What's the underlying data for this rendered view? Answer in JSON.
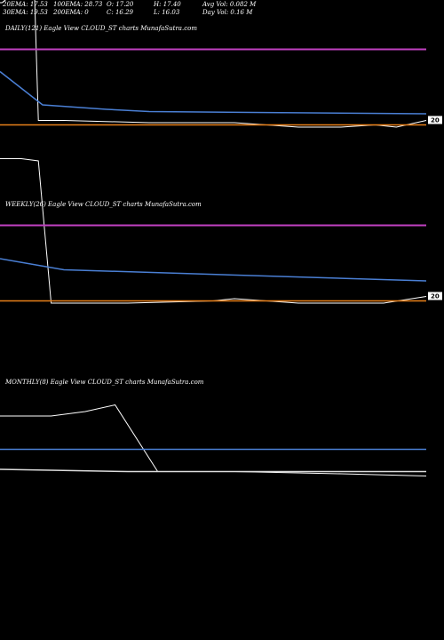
{
  "header": {
    "ema20": "20EMA: 17.53",
    "ema100": "100EMA: 28.73",
    "open": "O: 17.20",
    "high": "H: 17.40",
    "avg_vol": "Avg Vol: 0.082  M",
    "ema30": "30EMA: 19.53",
    "ema200": "200EMA: 0",
    "close": "C: 16.29",
    "low": "L: 16.03",
    "day_vol": "Day Vol: 0.16  M"
  },
  "panels": {
    "daily": {
      "title": "DAILY(121) Eagle   View  CLOUD_ST charts MunafaSutra.com",
      "price_tag": "20"
    },
    "weekly": {
      "title": "WEEKLY(26) Eagle   View  CLOUD_ST charts MunafaSutra.com",
      "price_tag": "20"
    },
    "monthly": {
      "title": "MONTHLY(8) Eagle   View  CLOUD_ST charts MunafaSutra.com"
    }
  },
  "colors": {
    "background": "#000000",
    "price": "#ffffff",
    "ema_magenta": "#c040c0",
    "ema_blue": "#4a7fd4",
    "ema_orange": "#e8801a",
    "ema_white": "#dddddd",
    "tag_bg": "#ffffff"
  },
  "chart_data": [
    {
      "type": "line",
      "title": "DAILY(121) Eagle   View  CLOUD_ST charts MunafaSutra.com",
      "series": [
        {
          "role": "price",
          "values": [
            21.6,
            21.6,
            22.0,
            22.4,
            22.6,
            16.3,
            16.3,
            16.2,
            16.2,
            16.0,
            16.0,
            16.1,
            16.0,
            16.3
          ]
        },
        {
          "role": "ema",
          "color": "#c040c0",
          "values": [
            19.5,
            19.5
          ]
        },
        {
          "role": "ema",
          "color": "#4a7fd4",
          "values": [
            18.5,
            17.0,
            16.8,
            16.7,
            16.6
          ]
        },
        {
          "role": "ema",
          "color": "#e8801a",
          "values": [
            16.1,
            16.1
          ]
        }
      ],
      "last_price_label": "20"
    },
    {
      "type": "line",
      "title": "WEEKLY(26) Eagle   View  CLOUD_ST charts MunafaSutra.com",
      "series": [
        {
          "role": "price",
          "values": [
            22.5,
            22.5,
            22.4,
            16.0,
            16.0,
            16.1,
            16.2,
            16.0,
            16.0,
            16.3
          ]
        },
        {
          "role": "ema",
          "color": "#c040c0",
          "values": [
            19.5,
            19.5
          ]
        },
        {
          "role": "ema",
          "color": "#4a7fd4",
          "values": [
            18.0,
            17.5,
            17.0
          ]
        },
        {
          "role": "ema",
          "color": "#e8801a",
          "values": [
            16.1,
            16.1
          ]
        }
      ],
      "last_price_label": "20"
    },
    {
      "type": "line",
      "title": "MONTHLY(8) Eagle   View  CLOUD_ST charts MunafaSutra.com",
      "series": [
        {
          "role": "price",
          "values": [
            19.0,
            19.0,
            19.2,
            19.5,
            16.5,
            16.5,
            16.4,
            16.3
          ]
        },
        {
          "role": "ema",
          "color": "#4a7fd4",
          "values": [
            17.5,
            17.5
          ]
        },
        {
          "role": "ema",
          "color": "#dddddd",
          "values": [
            16.6,
            16.5,
            16.5
          ]
        }
      ]
    }
  ]
}
